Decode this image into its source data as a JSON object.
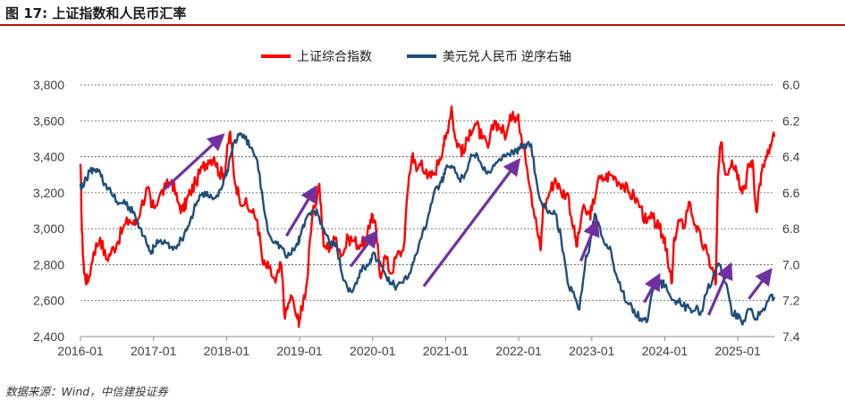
{
  "figure": {
    "title": "图 17: 上证指数和人民币汇率",
    "source": "数据来源：Wind，中信建投证券"
  },
  "colors": {
    "sse": "#ff0000",
    "usdcny": "#1f4e79",
    "arrow": "#7030a0",
    "grid": "#555555",
    "axis_text": "#404040",
    "title_rule": "#b11717"
  },
  "chart_data": {
    "type": "line",
    "legend_position": "top-center",
    "grid": "horizontal-dashed",
    "x_ticks": [
      "2016-01",
      "2017-01",
      "2018-01",
      "2019-01",
      "2020-01",
      "2021-01",
      "2022-01",
      "2023-01",
      "2024-01",
      "2025-01"
    ],
    "x_range": [
      2016.0,
      2025.5
    ],
    "y_left": {
      "range": [
        2400,
        3800
      ],
      "ticks": [
        2400,
        2600,
        2800,
        3000,
        3200,
        3400,
        3600,
        3800
      ],
      "tick_labels": [
        "2,400",
        "2,600",
        "2,800",
        "3,000",
        "3,200",
        "3,400",
        "3,600",
        "3,800"
      ]
    },
    "y_right": {
      "range": [
        6.0,
        7.4
      ],
      "inverted": true,
      "ticks": [
        6.0,
        6.2,
        6.4,
        6.6,
        6.8,
        7.0,
        7.2,
        7.4
      ],
      "tick_labels": [
        "6.0",
        "6.2",
        "6.4",
        "6.6",
        "6.8",
        "7.0",
        "7.2",
        "7.4"
      ]
    },
    "series": [
      {
        "name": "上证综合指数",
        "axis": "left",
        "points": [
          [
            2016.0,
            3360
          ],
          [
            2016.02,
            2980
          ],
          [
            2016.05,
            2750
          ],
          [
            2016.1,
            2700
          ],
          [
            2016.18,
            2870
          ],
          [
            2016.27,
            2950
          ],
          [
            2016.35,
            2830
          ],
          [
            2016.42,
            2870
          ],
          [
            2016.5,
            2920
          ],
          [
            2016.58,
            3000
          ],
          [
            2016.67,
            3050
          ],
          [
            2016.75,
            3020
          ],
          [
            2016.83,
            3120
          ],
          [
            2016.92,
            3230
          ],
          [
            2016.97,
            3120
          ],
          [
            2017.0,
            3120
          ],
          [
            2017.08,
            3180
          ],
          [
            2017.17,
            3230
          ],
          [
            2017.25,
            3270
          ],
          [
            2017.33,
            3150
          ],
          [
            2017.4,
            3100
          ],
          [
            2017.45,
            3150
          ],
          [
            2017.5,
            3200
          ],
          [
            2017.58,
            3260
          ],
          [
            2017.67,
            3340
          ],
          [
            2017.75,
            3380
          ],
          [
            2017.83,
            3400
          ],
          [
            2017.9,
            3310
          ],
          [
            2017.97,
            3300
          ],
          [
            2018.0,
            3400
          ],
          [
            2018.05,
            3540
          ],
          [
            2018.1,
            3300
          ],
          [
            2018.17,
            3180
          ],
          [
            2018.25,
            3140
          ],
          [
            2018.33,
            3100
          ],
          [
            2018.42,
            3050
          ],
          [
            2018.5,
            2800
          ],
          [
            2018.58,
            2780
          ],
          [
            2018.67,
            2700
          ],
          [
            2018.75,
            2800
          ],
          [
            2018.8,
            2500
          ],
          [
            2018.88,
            2630
          ],
          [
            2018.97,
            2500
          ],
          [
            2019.0,
            2490
          ],
          [
            2019.05,
            2600
          ],
          [
            2019.1,
            2700
          ],
          [
            2019.17,
            3050
          ],
          [
            2019.27,
            3250
          ],
          [
            2019.33,
            2900
          ],
          [
            2019.42,
            2900
          ],
          [
            2019.5,
            2950
          ],
          [
            2019.58,
            2850
          ],
          [
            2019.67,
            2950
          ],
          [
            2019.75,
            2930
          ],
          [
            2019.83,
            2910
          ],
          [
            2019.92,
            2930
          ],
          [
            2019.97,
            3050
          ],
          [
            2020.0,
            3080
          ],
          [
            2020.05,
            2980
          ],
          [
            2020.1,
            2740
          ],
          [
            2020.17,
            2850
          ],
          [
            2020.25,
            2750
          ],
          [
            2020.33,
            2850
          ],
          [
            2020.42,
            2880
          ],
          [
            2020.5,
            3300
          ],
          [
            2020.55,
            3420
          ],
          [
            2020.6,
            3320
          ],
          [
            2020.67,
            3380
          ],
          [
            2020.75,
            3280
          ],
          [
            2020.83,
            3300
          ],
          [
            2020.92,
            3390
          ],
          [
            2020.97,
            3470
          ],
          [
            2021.0,
            3500
          ],
          [
            2021.08,
            3680
          ],
          [
            2021.13,
            3500
          ],
          [
            2021.2,
            3450
          ],
          [
            2021.25,
            3420
          ],
          [
            2021.33,
            3550
          ],
          [
            2021.42,
            3580
          ],
          [
            2021.5,
            3500
          ],
          [
            2021.58,
            3450
          ],
          [
            2021.67,
            3600
          ],
          [
            2021.75,
            3560
          ],
          [
            2021.83,
            3520
          ],
          [
            2021.92,
            3650
          ],
          [
            2021.97,
            3620
          ],
          [
            2022.0,
            3600
          ],
          [
            2022.08,
            3450
          ],
          [
            2022.17,
            3200
          ],
          [
            2022.25,
            3000
          ],
          [
            2022.3,
            2880
          ],
          [
            2022.33,
            3100
          ],
          [
            2022.42,
            3200
          ],
          [
            2022.5,
            3280
          ],
          [
            2022.58,
            3200
          ],
          [
            2022.67,
            3200
          ],
          [
            2022.75,
            3000
          ],
          [
            2022.8,
            2900
          ],
          [
            2022.87,
            3100
          ],
          [
            2022.97,
            3080
          ],
          [
            2023.0,
            3100
          ],
          [
            2023.08,
            3260
          ],
          [
            2023.17,
            3280
          ],
          [
            2023.25,
            3300
          ],
          [
            2023.33,
            3280
          ],
          [
            2023.42,
            3250
          ],
          [
            2023.5,
            3200
          ],
          [
            2023.58,
            3180
          ],
          [
            2023.67,
            3120
          ],
          [
            2023.75,
            3030
          ],
          [
            2023.83,
            3060
          ],
          [
            2023.92,
            3000
          ],
          [
            2023.97,
            2960
          ],
          [
            2024.0,
            2950
          ],
          [
            2024.05,
            2780
          ],
          [
            2024.1,
            2700
          ],
          [
            2024.13,
            2950
          ],
          [
            2024.2,
            3050
          ],
          [
            2024.25,
            3000
          ],
          [
            2024.33,
            3150
          ],
          [
            2024.42,
            3020
          ],
          [
            2024.5,
            2930
          ],
          [
            2024.58,
            2860
          ],
          [
            2024.67,
            2750
          ],
          [
            2024.7,
            2700
          ],
          [
            2024.73,
            3300
          ],
          [
            2024.77,
            3480
          ],
          [
            2024.83,
            3300
          ],
          [
            2024.92,
            3380
          ],
          [
            2024.97,
            3350
          ],
          [
            2025.0,
            3300
          ],
          [
            2025.05,
            3230
          ],
          [
            2025.1,
            3240
          ],
          [
            2025.15,
            3350
          ],
          [
            2025.2,
            3380
          ],
          [
            2025.25,
            3100
          ],
          [
            2025.3,
            3250
          ],
          [
            2025.35,
            3350
          ],
          [
            2025.4,
            3400
          ],
          [
            2025.45,
            3450
          ],
          [
            2025.5,
            3510
          ]
        ]
      },
      {
        "name": "美元兑人民币 逆序右轴",
        "axis": "right",
        "points": [
          [
            2016.0,
            6.55
          ],
          [
            2016.03,
            6.57
          ],
          [
            2016.08,
            6.52
          ],
          [
            2016.13,
            6.48
          ],
          [
            2016.2,
            6.47
          ],
          [
            2016.27,
            6.49
          ],
          [
            2016.33,
            6.55
          ],
          [
            2016.42,
            6.6
          ],
          [
            2016.5,
            6.65
          ],
          [
            2016.58,
            6.66
          ],
          [
            2016.67,
            6.68
          ],
          [
            2016.75,
            6.73
          ],
          [
            2016.83,
            6.8
          ],
          [
            2016.92,
            6.9
          ],
          [
            2016.97,
            6.94
          ],
          [
            2017.0,
            6.9
          ],
          [
            2017.08,
            6.87
          ],
          [
            2017.17,
            6.88
          ],
          [
            2017.25,
            6.9
          ],
          [
            2017.33,
            6.89
          ],
          [
            2017.42,
            6.83
          ],
          [
            2017.5,
            6.76
          ],
          [
            2017.58,
            6.67
          ],
          [
            2017.67,
            6.6
          ],
          [
            2017.75,
            6.62
          ],
          [
            2017.83,
            6.63
          ],
          [
            2017.92,
            6.58
          ],
          [
            2017.97,
            6.52
          ],
          [
            2018.0,
            6.5
          ],
          [
            2018.05,
            6.4
          ],
          [
            2018.1,
            6.32
          ],
          [
            2018.17,
            6.28
          ],
          [
            2018.25,
            6.3
          ],
          [
            2018.33,
            6.35
          ],
          [
            2018.42,
            6.42
          ],
          [
            2018.5,
            6.65
          ],
          [
            2018.58,
            6.83
          ],
          [
            2018.67,
            6.87
          ],
          [
            2018.75,
            6.9
          ],
          [
            2018.83,
            6.96
          ],
          [
            2018.92,
            6.92
          ],
          [
            2018.97,
            6.88
          ],
          [
            2019.0,
            6.85
          ],
          [
            2019.08,
            6.75
          ],
          [
            2019.17,
            6.7
          ],
          [
            2019.25,
            6.72
          ],
          [
            2019.33,
            6.8
          ],
          [
            2019.42,
            6.9
          ],
          [
            2019.5,
            6.88
          ],
          [
            2019.58,
            7.05
          ],
          [
            2019.67,
            7.15
          ],
          [
            2019.75,
            7.12
          ],
          [
            2019.83,
            7.03
          ],
          [
            2019.92,
            7.0
          ],
          [
            2019.97,
            6.97
          ],
          [
            2020.0,
            6.94
          ],
          [
            2020.08,
            6.98
          ],
          [
            2020.17,
            7.05
          ],
          [
            2020.25,
            7.1
          ],
          [
            2020.33,
            7.12
          ],
          [
            2020.42,
            7.1
          ],
          [
            2020.5,
            7.05
          ],
          [
            2020.58,
            6.95
          ],
          [
            2020.67,
            6.85
          ],
          [
            2020.75,
            6.75
          ],
          [
            2020.83,
            6.62
          ],
          [
            2020.92,
            6.55
          ],
          [
            2020.97,
            6.52
          ],
          [
            2021.0,
            6.47
          ],
          [
            2021.08,
            6.45
          ],
          [
            2021.17,
            6.52
          ],
          [
            2021.25,
            6.52
          ],
          [
            2021.33,
            6.42
          ],
          [
            2021.42,
            6.38
          ],
          [
            2021.5,
            6.46
          ],
          [
            2021.58,
            6.48
          ],
          [
            2021.67,
            6.45
          ],
          [
            2021.75,
            6.42
          ],
          [
            2021.83,
            6.39
          ],
          [
            2021.92,
            6.37
          ],
          [
            2021.97,
            6.36
          ],
          [
            2022.0,
            6.36
          ],
          [
            2022.08,
            6.33
          ],
          [
            2022.17,
            6.33
          ],
          [
            2022.25,
            6.55
          ],
          [
            2022.33,
            6.68
          ],
          [
            2022.42,
            6.7
          ],
          [
            2022.5,
            6.72
          ],
          [
            2022.58,
            6.85
          ],
          [
            2022.67,
            7.1
          ],
          [
            2022.75,
            7.15
          ],
          [
            2022.83,
            7.25
          ],
          [
            2022.92,
            6.95
          ],
          [
            2022.97,
            6.9
          ],
          [
            2023.0,
            6.8
          ],
          [
            2023.05,
            6.72
          ],
          [
            2023.1,
            6.78
          ],
          [
            2023.17,
            6.88
          ],
          [
            2023.25,
            6.9
          ],
          [
            2023.33,
            7.05
          ],
          [
            2023.42,
            7.15
          ],
          [
            2023.5,
            7.22
          ],
          [
            2023.58,
            7.25
          ],
          [
            2023.67,
            7.3
          ],
          [
            2023.75,
            7.32
          ],
          [
            2023.83,
            7.15
          ],
          [
            2023.92,
            7.12
          ],
          [
            2023.97,
            7.1
          ],
          [
            2024.0,
            7.12
          ],
          [
            2024.08,
            7.18
          ],
          [
            2024.17,
            7.2
          ],
          [
            2024.25,
            7.23
          ],
          [
            2024.33,
            7.24
          ],
          [
            2024.42,
            7.25
          ],
          [
            2024.5,
            7.26
          ],
          [
            2024.58,
            7.15
          ],
          [
            2024.67,
            7.05
          ],
          [
            2024.75,
            7.0
          ],
          [
            2024.83,
            7.1
          ],
          [
            2024.92,
            7.28
          ],
          [
            2024.97,
            7.28
          ],
          [
            2025.0,
            7.3
          ],
          [
            2025.08,
            7.31
          ],
          [
            2025.17,
            7.25
          ],
          [
            2025.25,
            7.3
          ],
          [
            2025.33,
            7.26
          ],
          [
            2025.42,
            7.2
          ],
          [
            2025.5,
            7.18
          ]
        ]
      }
    ],
    "annotations": {
      "type": "arrows",
      "arrows": [
        {
          "from": [
            2017.15,
            3220
          ],
          "to": [
            2017.95,
            3520
          ]
        },
        {
          "from": [
            2018.82,
            2960
          ],
          "to": [
            2019.22,
            3230
          ]
        },
        {
          "from": [
            2019.7,
            2790
          ],
          "to": [
            2020.05,
            2980
          ]
        },
        {
          "from": [
            2020.7,
            2680
          ],
          "to": [
            2022.0,
            3380
          ]
        },
        {
          "from": [
            2022.85,
            2820
          ],
          "to": [
            2023.07,
            3040
          ]
        },
        {
          "from": [
            2023.72,
            2590
          ],
          "to": [
            2023.92,
            2740
          ]
        },
        {
          "from": [
            2024.6,
            2520
          ],
          "to": [
            2024.9,
            2800
          ]
        },
        {
          "from": [
            2025.15,
            2610
          ],
          "to": [
            2025.45,
            2770
          ]
        }
      ]
    }
  }
}
